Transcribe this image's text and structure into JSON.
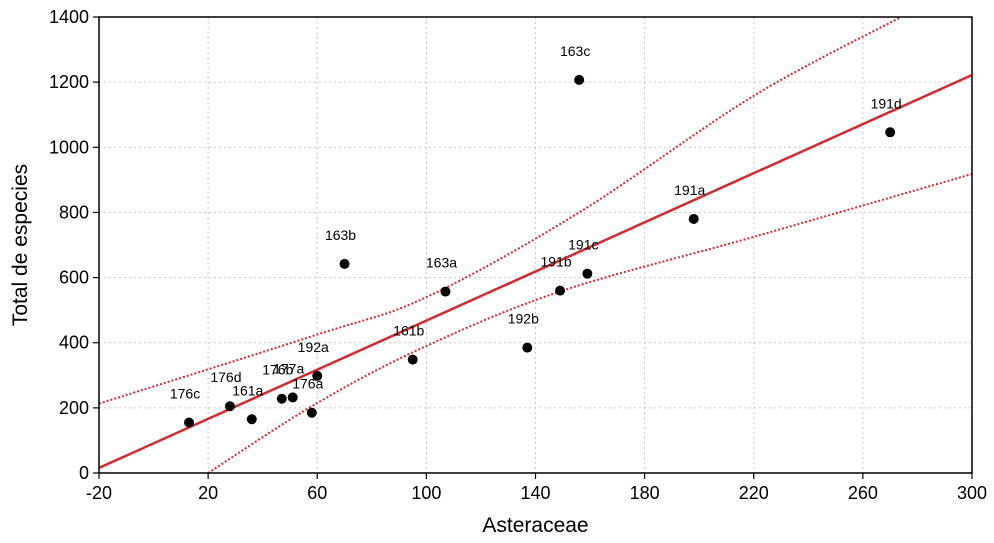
{
  "chart_data": {
    "type": "scatter",
    "title": "",
    "xlabel": "Asteraceae",
    "ylabel": "Total de especies",
    "xlim": [
      -20,
      300
    ],
    "ylim": [
      0,
      1400
    ],
    "xticks": [
      -20,
      20,
      60,
      100,
      140,
      180,
      220,
      260,
      300
    ],
    "yticks": [
      0,
      200,
      400,
      600,
      800,
      1000,
      1200,
      1400
    ],
    "grid": true,
    "points": [
      {
        "label": "176c",
        "x": 13,
        "y": 155
      },
      {
        "label": "176d",
        "x": 28,
        "y": 205
      },
      {
        "label": "161a",
        "x": 36,
        "y": 165
      },
      {
        "label": "176b",
        "x": 47,
        "y": 228
      },
      {
        "label": "177a",
        "x": 51,
        "y": 232
      },
      {
        "label": "176a",
        "x": 58,
        "y": 185
      },
      {
        "label": "192a",
        "x": 60,
        "y": 298
      },
      {
        "label": "163b",
        "x": 70,
        "y": 642
      },
      {
        "label": "161b",
        "x": 95,
        "y": 348
      },
      {
        "label": "163a",
        "x": 107,
        "y": 557
      },
      {
        "label": "192b",
        "x": 137,
        "y": 385
      },
      {
        "label": "191b",
        "x": 149,
        "y": 560
      },
      {
        "label": "163c",
        "x": 156,
        "y": 1207
      },
      {
        "label": "191c",
        "x": 159,
        "y": 612
      },
      {
        "label": "191a",
        "x": 198,
        "y": 780
      },
      {
        "label": "191d",
        "x": 270,
        "y": 1046
      }
    ],
    "regression": {
      "intercept": 91,
      "slope": 3.77
    },
    "confidence_band": {
      "upper": [
        [
          -20,
          213
        ],
        [
          60,
          425
        ],
        [
          100,
          540
        ],
        [
          156,
          800
        ],
        [
          220,
          1158
        ],
        [
          274,
          1400
        ]
      ],
      "lower": [
        [
          20,
          0
        ],
        [
          60,
          215
        ],
        [
          100,
          390
        ],
        [
          150,
          560
        ],
        [
          220,
          725
        ],
        [
          300,
          918
        ]
      ]
    },
    "colors": {
      "regression": "#d42a2f",
      "points": "#000000",
      "grid": "#c8c8c8"
    }
  }
}
